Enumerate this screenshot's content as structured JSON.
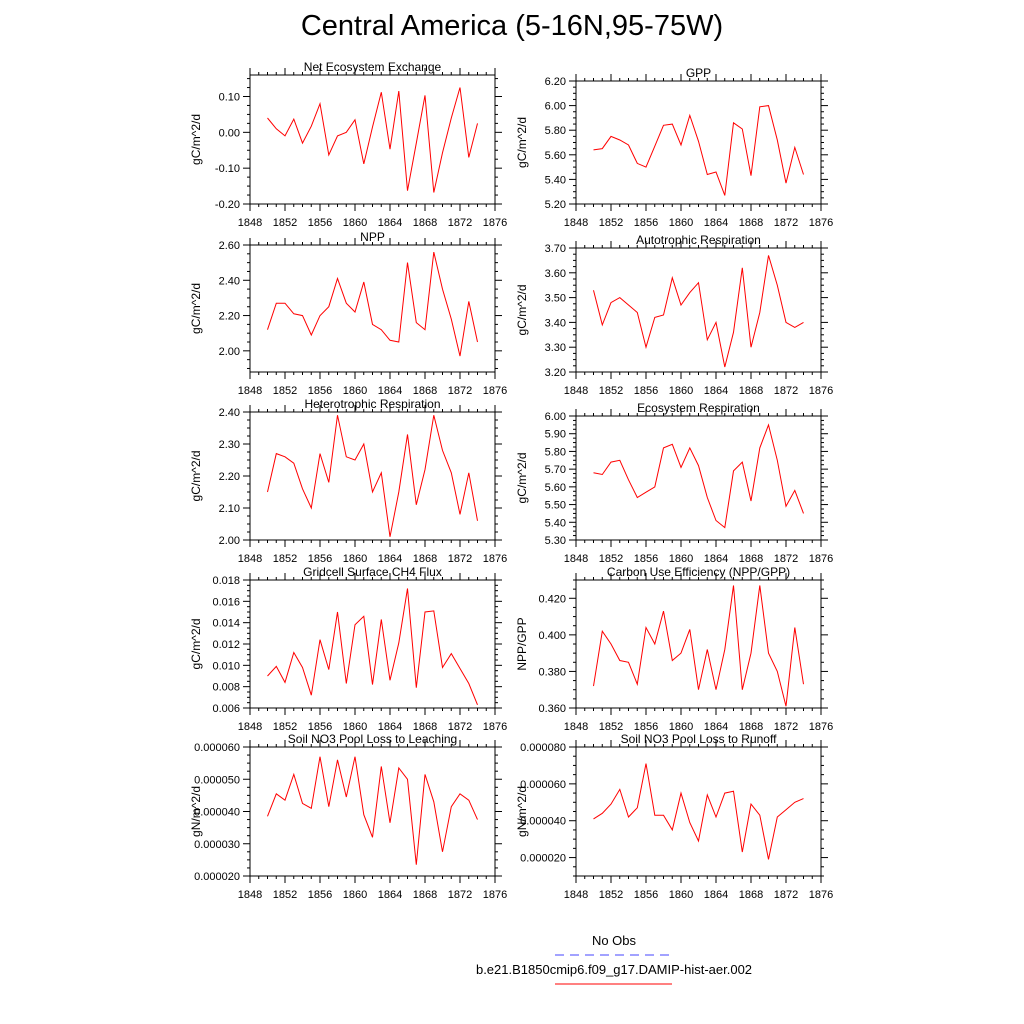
{
  "page": {
    "title": "Central America (5-16N,95-75W)"
  },
  "legend": {
    "items": [
      {
        "label": "No Obs",
        "color": "#4444ff",
        "dashed": true
      },
      {
        "label": "b.e21.B1850cmip6.f09_g17.DAMIP-hist-aer.002",
        "color": "#ff0000",
        "dashed": false
      }
    ]
  },
  "chart_data": [
    {
      "type": "line",
      "title": "Net Ecosystem Exchange",
      "ylabel": "gC/m^2/d",
      "xlim": [
        1848,
        1876
      ],
      "ylim": [
        -0.2,
        0.16
      ],
      "xticks": [
        "1848",
        "1852",
        "1856",
        "1860",
        "1864",
        "1868",
        "1872",
        "1876"
      ],
      "yticks": [
        "-0.20",
        "-0.10",
        "0.00",
        "0.10"
      ],
      "series": [
        {
          "color": "#ff0000",
          "x": [
            1850,
            1851,
            1852,
            1853,
            1854,
            1855,
            1856,
            1857,
            1858,
            1859,
            1860,
            1861,
            1862,
            1863,
            1864,
            1865,
            1866,
            1867,
            1868,
            1869,
            1870,
            1871,
            1872,
            1873,
            1874
          ],
          "y": [
            0.04,
            0.01,
            -0.01,
            0.037,
            -0.03,
            0.017,
            0.08,
            -0.063,
            -0.01,
            0.0,
            0.035,
            -0.088,
            0.015,
            0.112,
            -0.047,
            0.115,
            -0.163,
            -0.03,
            0.103,
            -0.168,
            -0.057,
            0.04,
            0.125,
            -0.07,
            0.025
          ]
        }
      ]
    },
    {
      "type": "line",
      "title": "GPP",
      "ylabel": "gC/m^2/d",
      "xlim": [
        1848,
        1876
      ],
      "ylim": [
        5.2,
        6.2
      ],
      "xticks": [
        "1848",
        "1852",
        "1856",
        "1860",
        "1864",
        "1868",
        "1872",
        "1876"
      ],
      "yticks": [
        "5.20",
        "5.40",
        "5.60",
        "5.80",
        "6.00",
        "6.20"
      ],
      "series": [
        {
          "color": "#ff0000",
          "x": [
            1850,
            1851,
            1852,
            1853,
            1854,
            1855,
            1856,
            1857,
            1858,
            1859,
            1860,
            1861,
            1862,
            1863,
            1864,
            1865,
            1866,
            1867,
            1868,
            1869,
            1870,
            1871,
            1872,
            1873,
            1874
          ],
          "y": [
            5.64,
            5.65,
            5.75,
            5.72,
            5.68,
            5.53,
            5.5,
            5.67,
            5.84,
            5.85,
            5.68,
            5.92,
            5.71,
            5.44,
            5.46,
            5.27,
            5.86,
            5.81,
            5.43,
            5.99,
            6.0,
            5.72,
            5.37,
            5.66,
            5.44
          ]
        }
      ]
    },
    {
      "type": "line",
      "title": "NPP",
      "ylabel": "gC/m^2/d",
      "xlim": [
        1848,
        1876
      ],
      "ylim": [
        1.88,
        2.6
      ],
      "xticks": [
        "1848",
        "1852",
        "1856",
        "1860",
        "1864",
        "1868",
        "1872",
        "1876"
      ],
      "yticks": [
        "2.00",
        "2.20",
        "2.40",
        "2.60"
      ],
      "series": [
        {
          "color": "#ff0000",
          "x": [
            1850,
            1851,
            1852,
            1853,
            1854,
            1855,
            1856,
            1857,
            1858,
            1859,
            1860,
            1861,
            1862,
            1863,
            1864,
            1865,
            1866,
            1867,
            1868,
            1869,
            1870,
            1871,
            1872,
            1873,
            1874
          ],
          "y": [
            2.12,
            2.27,
            2.27,
            2.21,
            2.2,
            2.09,
            2.2,
            2.25,
            2.41,
            2.27,
            2.22,
            2.39,
            2.15,
            2.12,
            2.06,
            2.05,
            2.5,
            2.16,
            2.12,
            2.56,
            2.35,
            2.18,
            1.97,
            2.28,
            2.05
          ]
        }
      ]
    },
    {
      "type": "line",
      "title": "Autotrophic Respiration",
      "ylabel": "gC/m^2/d",
      "xlim": [
        1848,
        1876
      ],
      "ylim": [
        3.2,
        3.7
      ],
      "xticks": [
        "1848",
        "1852",
        "1856",
        "1860",
        "1864",
        "1868",
        "1872",
        "1876"
      ],
      "yticks": [
        "3.20",
        "3.30",
        "3.40",
        "3.50",
        "3.60",
        "3.70"
      ],
      "series": [
        {
          "color": "#ff0000",
          "x": [
            1850,
            1851,
            1852,
            1853,
            1854,
            1855,
            1856,
            1857,
            1858,
            1859,
            1860,
            1861,
            1862,
            1863,
            1864,
            1865,
            1866,
            1867,
            1868,
            1869,
            1870,
            1871,
            1872,
            1873,
            1874
          ],
          "y": [
            3.53,
            3.39,
            3.48,
            3.5,
            3.47,
            3.44,
            3.3,
            3.42,
            3.43,
            3.58,
            3.47,
            3.52,
            3.56,
            3.33,
            3.4,
            3.22,
            3.36,
            3.62,
            3.3,
            3.44,
            3.67,
            3.55,
            3.4,
            3.38,
            3.4
          ]
        }
      ]
    },
    {
      "type": "line",
      "title": "Heterotrophic Respiration",
      "ylabel": "gC/m^2/d",
      "xlim": [
        1848,
        1876
      ],
      "ylim": [
        2.0,
        2.4
      ],
      "xticks": [
        "1848",
        "1852",
        "1856",
        "1860",
        "1864",
        "1868",
        "1872",
        "1876"
      ],
      "yticks": [
        "2.00",
        "2.10",
        "2.20",
        "2.30",
        "2.40"
      ],
      "series": [
        {
          "color": "#ff0000",
          "x": [
            1850,
            1851,
            1852,
            1853,
            1854,
            1855,
            1856,
            1857,
            1858,
            1859,
            1860,
            1861,
            1862,
            1863,
            1864,
            1865,
            1866,
            1867,
            1868,
            1869,
            1870,
            1871,
            1872,
            1873,
            1874
          ],
          "y": [
            2.15,
            2.27,
            2.26,
            2.24,
            2.16,
            2.1,
            2.27,
            2.18,
            2.39,
            2.26,
            2.25,
            2.3,
            2.15,
            2.21,
            2.01,
            2.15,
            2.33,
            2.11,
            2.22,
            2.39,
            2.28,
            2.21,
            2.08,
            2.21,
            2.06
          ]
        }
      ]
    },
    {
      "type": "line",
      "title": "Ecosystem Respiration",
      "ylabel": "gC/m^2/d",
      "xlim": [
        1848,
        1876
      ],
      "ylim": [
        5.3,
        6.0
      ],
      "xticks": [
        "1848",
        "1852",
        "1856",
        "1860",
        "1864",
        "1868",
        "1872",
        "1876"
      ],
      "yticks": [
        "5.30",
        "5.40",
        "5.50",
        "5.60",
        "5.70",
        "5.80",
        "5.90",
        "6.00"
      ],
      "series": [
        {
          "color": "#ff0000",
          "x": [
            1850,
            1851,
            1852,
            1853,
            1854,
            1855,
            1856,
            1857,
            1858,
            1859,
            1860,
            1861,
            1862,
            1863,
            1864,
            1865,
            1866,
            1867,
            1868,
            1869,
            1870,
            1871,
            1872,
            1873,
            1874
          ],
          "y": [
            5.68,
            5.67,
            5.74,
            5.75,
            5.64,
            5.54,
            5.57,
            5.6,
            5.82,
            5.84,
            5.71,
            5.82,
            5.72,
            5.54,
            5.41,
            5.37,
            5.69,
            5.74,
            5.52,
            5.82,
            5.95,
            5.75,
            5.49,
            5.58,
            5.45
          ]
        }
      ]
    },
    {
      "type": "line",
      "title": "Gridcell Surface CH4 Flux",
      "ylabel": "gC/m^2/d",
      "xlim": [
        1848,
        1876
      ],
      "ylim": [
        0.006,
        0.018
      ],
      "xticks": [
        "1848",
        "1852",
        "1856",
        "1860",
        "1864",
        "1868",
        "1872",
        "1876"
      ],
      "yticks": [
        "0.006",
        "0.008",
        "0.010",
        "0.012",
        "0.014",
        "0.016",
        "0.018"
      ],
      "series": [
        {
          "color": "#ff0000",
          "x": [
            1850,
            1851,
            1852,
            1853,
            1854,
            1855,
            1856,
            1857,
            1858,
            1859,
            1860,
            1861,
            1862,
            1863,
            1864,
            1865,
            1866,
            1867,
            1868,
            1869,
            1870,
            1871,
            1872,
            1873,
            1874
          ],
          "y": [
            0.009,
            0.0099,
            0.0084,
            0.0112,
            0.0098,
            0.0072,
            0.0124,
            0.0096,
            0.015,
            0.0083,
            0.0138,
            0.0146,
            0.0082,
            0.0143,
            0.0086,
            0.0121,
            0.0172,
            0.0079,
            0.015,
            0.0151,
            0.0098,
            0.0111,
            0.0097,
            0.0083,
            0.0063
          ]
        }
      ]
    },
    {
      "type": "line",
      "title": "Carbon Use Efficiency (NPP/GPP)",
      "ylabel": "NPP/GPP",
      "xlim": [
        1848,
        1876
      ],
      "ylim": [
        0.36,
        0.43
      ],
      "xticks": [
        "1848",
        "1852",
        "1856",
        "1860",
        "1864",
        "1868",
        "1872",
        "1876"
      ],
      "yticks": [
        "0.360",
        "0.380",
        "0.400",
        "0.420"
      ],
      "series": [
        {
          "color": "#ff0000",
          "x": [
            1850,
            1851,
            1852,
            1853,
            1854,
            1855,
            1856,
            1857,
            1858,
            1859,
            1860,
            1861,
            1862,
            1863,
            1864,
            1865,
            1866,
            1867,
            1868,
            1869,
            1870,
            1871,
            1872,
            1873,
            1874
          ],
          "y": [
            0.372,
            0.402,
            0.395,
            0.386,
            0.385,
            0.373,
            0.404,
            0.395,
            0.413,
            0.386,
            0.39,
            0.403,
            0.37,
            0.392,
            0.37,
            0.392,
            0.427,
            0.37,
            0.39,
            0.427,
            0.39,
            0.38,
            0.361,
            0.404,
            0.373
          ]
        }
      ]
    },
    {
      "type": "line",
      "title": "Soil NO3 Pool Loss to Leaching",
      "ylabel": "gN/m^2/d",
      "xlim": [
        1848,
        1876
      ],
      "ylim": [
        2e-05,
        6e-05
      ],
      "xticks": [
        "1848",
        "1852",
        "1856",
        "1860",
        "1864",
        "1868",
        "1872",
        "1876"
      ],
      "yticks": [
        "0.000020",
        "0.000030",
        "0.000040",
        "0.000050",
        "0.000060"
      ],
      "series": [
        {
          "color": "#ff0000",
          "x": [
            1850,
            1851,
            1852,
            1853,
            1854,
            1855,
            1856,
            1857,
            1858,
            1859,
            1860,
            1861,
            1862,
            1863,
            1864,
            1865,
            1866,
            1867,
            1868,
            1869,
            1870,
            1871,
            1872,
            1873,
            1874
          ],
          "y": [
            3.85e-05,
            4.55e-05,
            4.35e-05,
            5.15e-05,
            4.25e-05,
            4.1e-05,
            5.7e-05,
            4.15e-05,
            5.6e-05,
            4.45e-05,
            5.7e-05,
            3.9e-05,
            3.2e-05,
            5.4e-05,
            3.65e-05,
            5.35e-05,
            5e-05,
            2.35e-05,
            5.15e-05,
            4.3e-05,
            2.75e-05,
            4.15e-05,
            4.55e-05,
            4.35e-05,
            3.75e-05
          ]
        }
      ]
    },
    {
      "type": "line",
      "title": "Soil NO3 Pool Loss to Runoff",
      "ylabel": "gN/m^2/d",
      "xlim": [
        1848,
        1876
      ],
      "ylim": [
        1e-05,
        8e-05
      ],
      "xticks": [
        "1848",
        "1852",
        "1856",
        "1860",
        "1864",
        "1868",
        "1872",
        "1876"
      ],
      "yticks": [
        "0.000020",
        "0.000040",
        "0.000060",
        "0.000080"
      ],
      "series": [
        {
          "color": "#ff0000",
          "x": [
            1850,
            1851,
            1852,
            1853,
            1854,
            1855,
            1856,
            1857,
            1858,
            1859,
            1860,
            1861,
            1862,
            1863,
            1864,
            1865,
            1866,
            1867,
            1868,
            1869,
            1870,
            1871,
            1872,
            1873,
            1874
          ],
          "y": [
            4.1e-05,
            4.4e-05,
            4.9e-05,
            5.7e-05,
            4.2e-05,
            4.7e-05,
            7.1e-05,
            4.3e-05,
            4.3e-05,
            3.5e-05,
            5.5e-05,
            3.9e-05,
            2.9e-05,
            5.4e-05,
            4.2e-05,
            5.5e-05,
            5.6e-05,
            2.3e-05,
            4.9e-05,
            4.3e-05,
            1.9e-05,
            4.2e-05,
            4.6e-05,
            5e-05,
            5.2e-05
          ]
        }
      ]
    }
  ]
}
